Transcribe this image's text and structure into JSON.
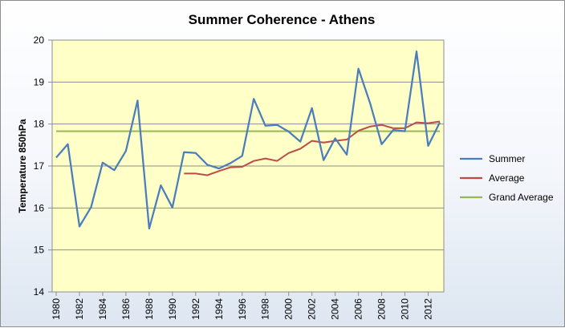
{
  "chart_data": {
    "type": "line",
    "title": "Summer Coherence - Athens",
    "xlabel": "",
    "ylabel": "Temperature 850hPa",
    "ylim": [
      14,
      20
    ],
    "yticks": [
      14,
      15,
      16,
      17,
      18,
      19,
      20
    ],
    "xlim": [
      1980,
      2013
    ],
    "xticks": [
      1980,
      1982,
      1984,
      1986,
      1988,
      1990,
      1992,
      1994,
      1996,
      1998,
      2000,
      2002,
      2004,
      2006,
      2008,
      2010,
      2012
    ],
    "grid": "horizontal",
    "plot_background": "#ffffc8",
    "legend_position": "right",
    "series": [
      {
        "name": "Summer",
        "color": "#4a7ebb",
        "x": [
          1980,
          1981,
          1982,
          1983,
          1984,
          1985,
          1986,
          1987,
          1988,
          1989,
          1990,
          1991,
          1992,
          1993,
          1994,
          1995,
          1996,
          1997,
          1998,
          1999,
          2000,
          2001,
          2002,
          2003,
          2004,
          2005,
          2006,
          2007,
          2008,
          2009,
          2010,
          2011,
          2012,
          2013
        ],
        "values": [
          17.2,
          17.52,
          15.56,
          16.02,
          17.08,
          16.9,
          17.36,
          18.56,
          15.51,
          16.54,
          16.01,
          17.33,
          17.31,
          17.03,
          16.94,
          17.07,
          17.24,
          18.6,
          17.96,
          17.98,
          17.82,
          17.58,
          18.38,
          17.14,
          17.66,
          17.27,
          19.32,
          18.5,
          17.52,
          17.86,
          17.83,
          19.73,
          17.48,
          18.04
        ]
      },
      {
        "name": "Average",
        "color": "#be4b48",
        "x": [
          1991,
          1992,
          1993,
          1994,
          1995,
          1996,
          1997,
          1998,
          1999,
          2000,
          2001,
          2002,
          2003,
          2004,
          2005,
          2006,
          2007,
          2008,
          2009,
          2010,
          2011,
          2012,
          2013
        ],
        "values": [
          16.82,
          16.82,
          16.78,
          16.88,
          16.97,
          16.98,
          17.12,
          17.18,
          17.12,
          17.31,
          17.41,
          17.6,
          17.56,
          17.6,
          17.63,
          17.84,
          17.94,
          17.98,
          17.9,
          17.9,
          18.04,
          18.02,
          18.06
        ]
      },
      {
        "name": "Grand Average",
        "color": "#98b954",
        "x": [
          1980,
          2013
        ],
        "values": [
          17.83,
          17.83
        ]
      }
    ]
  }
}
